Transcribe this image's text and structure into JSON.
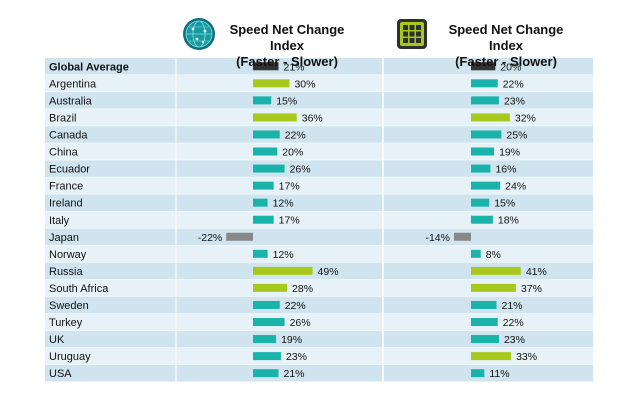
{
  "chart_data": {
    "type": "bar",
    "title": "",
    "xlabel": "",
    "ylabel": "",
    "xlim": [
      -25,
      50
    ],
    "grid": false,
    "categories": [
      "Global Average",
      "Argentina",
      "Australia",
      "Brazil",
      "Canada",
      "China",
      "Ecuador",
      "France",
      "Ireland",
      "Italy",
      "Japan",
      "Norway",
      "Russia",
      "South Africa",
      "Sweden",
      "Turkey",
      "UK",
      "Uruguay",
      "USA"
    ],
    "series": [
      {
        "name_line1": "Speed Net Change Index",
        "name_line2": "(Faster - Slower)",
        "icon": "globe-network-icon",
        "values": [
          21,
          30,
          15,
          36,
          22,
          20,
          26,
          17,
          12,
          17,
          -22,
          12,
          49,
          28,
          22,
          26,
          19,
          23,
          21
        ],
        "labels": [
          "21%",
          "30%",
          "15%",
          "36%",
          "22%",
          "20%",
          "26%",
          "17%",
          "12%",
          "17%",
          "-22%",
          "12%",
          "49%",
          "28%",
          "22%",
          "26%",
          "19%",
          "23%",
          "21%"
        ]
      },
      {
        "name_line1": "Speed Net Change Index",
        "name_line2": "(Faster - Slower)",
        "icon": "grid-app-icon",
        "values": [
          20,
          22,
          23,
          32,
          25,
          19,
          16,
          24,
          15,
          18,
          -14,
          8,
          41,
          37,
          21,
          22,
          23,
          33,
          11
        ],
        "labels": [
          "20%",
          "22%",
          "23%",
          "32%",
          "25%",
          "19%",
          "16%",
          "24%",
          "15%",
          "18%",
          "-14%",
          "8%",
          "41%",
          "37%",
          "21%",
          "22%",
          "23%",
          "33%",
          "11%"
        ]
      }
    ]
  },
  "colors": {
    "row_dark": "#cfe4ef",
    "row_light": "#e6f2f8",
    "global_bar": "#333333",
    "standard_bar": "#1ab3aa",
    "highlight_bar": "#a7c81c",
    "negative_bar": "#888888",
    "text": "#111111",
    "icon_globe": "#1a9aa0",
    "icon_grid": "#a7c81c"
  }
}
